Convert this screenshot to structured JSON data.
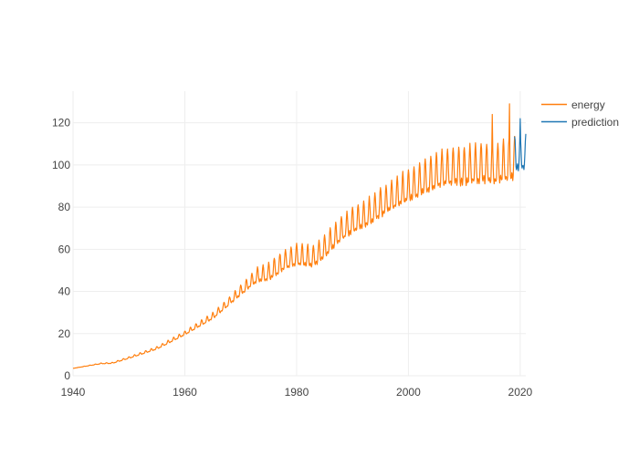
{
  "colors": {
    "energy": "#ff7f0e",
    "prediction": "#1f77b4",
    "grid": "#eeeeee",
    "axis_text": "#444444",
    "background": "#ffffff"
  },
  "chart_data": {
    "type": "line",
    "title": "",
    "xlabel": "",
    "ylabel": "",
    "xlim": [
      1940,
      2021
    ],
    "ylim": [
      0,
      135
    ],
    "x_ticks": [
      1940,
      1960,
      1980,
      2000,
      2020
    ],
    "y_ticks": [
      0,
      20,
      40,
      60,
      80,
      100,
      120
    ],
    "x_tick_labels": [
      "1940",
      "1960",
      "1980",
      "2000",
      "2020"
    ],
    "y_tick_labels": [
      "0",
      "20",
      "40",
      "60",
      "80",
      "100",
      "120"
    ],
    "grid": true,
    "legend_position": "top-right",
    "series": [
      {
        "name": "energy",
        "frequency": "monthly",
        "x_start": 1940.0,
        "x_end": 2019.0,
        "trend": [
          [
            1940,
            3.5
          ],
          [
            1945,
            5.8
          ],
          [
            1947,
            6.0
          ],
          [
            1950,
            8.5
          ],
          [
            1955,
            13
          ],
          [
            1960,
            20
          ],
          [
            1965,
            28
          ],
          [
            1968,
            35
          ],
          [
            1970,
            40
          ],
          [
            1973,
            47
          ],
          [
            1975,
            48
          ],
          [
            1978,
            54
          ],
          [
            1980,
            56
          ],
          [
            1983,
            55
          ],
          [
            1985,
            60
          ],
          [
            1988,
            68
          ],
          [
            1990,
            72
          ],
          [
            1993,
            76
          ],
          [
            1995,
            80
          ],
          [
            1998,
            85
          ],
          [
            2000,
            88
          ],
          [
            2003,
            92
          ],
          [
            2006,
            96
          ],
          [
            2010,
            97
          ],
          [
            2013,
            98
          ],
          [
            2016,
            98
          ],
          [
            2019,
            100
          ]
        ],
        "seasonal_amplitude": [
          [
            1940,
            0
          ],
          [
            1950,
            0.5
          ],
          [
            1960,
            1.2
          ],
          [
            1968,
            2.5
          ],
          [
            1972,
            4
          ],
          [
            1976,
            6
          ],
          [
            1985,
            7
          ],
          [
            1995,
            9
          ],
          [
            2005,
            11
          ],
          [
            2010,
            12
          ],
          [
            2019,
            13
          ]
        ],
        "peaks": [
          [
            2015.0,
            124
          ],
          [
            2018.1,
            129
          ]
        ]
      },
      {
        "name": "prediction",
        "frequency": "monthly",
        "x_start": 2019.0,
        "x_end": 2021.0,
        "trend": [
          [
            2019.0,
            103
          ],
          [
            2021.0,
            104
          ]
        ],
        "seasonal_amplitude": [
          [
            2019.0,
            11
          ],
          [
            2021.0,
            11
          ]
        ],
        "peaks": [
          [
            2020.0,
            122
          ]
        ]
      }
    ]
  }
}
